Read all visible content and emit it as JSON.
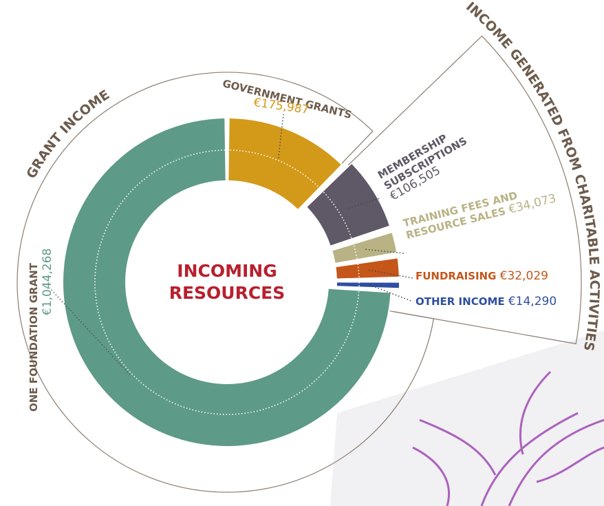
{
  "chart_data": {
    "type": "donut",
    "center_label": "INCOMING RESOURCES",
    "group_labels": [
      "GRANT INCOME",
      "INCOME GENERATED FROM CHARITABLE ACTIVITIES"
    ],
    "categories": [
      "GOVERNMENT GRANTS",
      "MEMBERSHIP SUBSCRIPTIONS",
      "TRAINING FEES AND RESOURCE SALES",
      "FUNDRAISING",
      "OTHER INCOME",
      "ONE FOUNDATION GRANT"
    ],
    "values": [
      175987,
      106505,
      34073,
      32029,
      14290,
      1044268
    ],
    "value_labels": [
      "€175,987",
      "€106,505",
      "€34,073",
      "€32,029",
      "€14,290",
      "€1,044,268"
    ],
    "colors": [
      "#d39a1a",
      "#5f5866",
      "#b9b284",
      "#c4561a",
      "#2e4fa0",
      "#5e9a88"
    ]
  }
}
